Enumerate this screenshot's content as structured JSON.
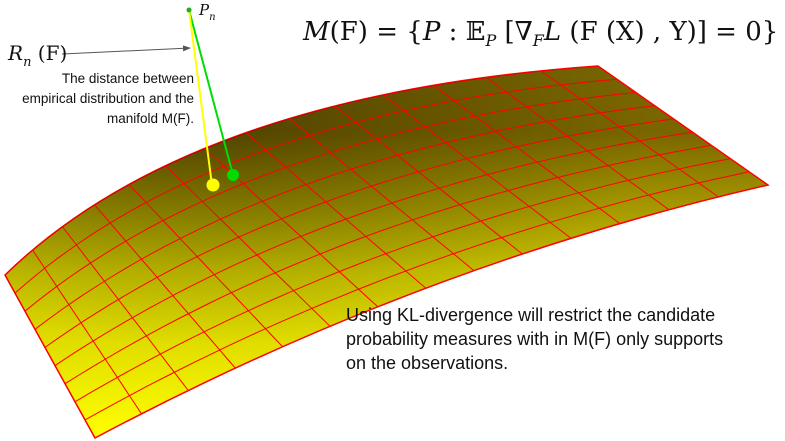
{
  "formula": {
    "lhs": "M",
    "arg": "(F)",
    "eq": " = {",
    "p": "P",
    "colon": " : ",
    "expect": "𝔼",
    "expect_sub": "P",
    "bracket_open": " [",
    "nabla": "∇",
    "nabla_sub": "F",
    "loss": "L",
    "loss_args": " (F (X) , Y)] = 0}"
  },
  "point": {
    "label": "P",
    "sub": "n"
  },
  "distance": {
    "label": "R",
    "sub": "n",
    "arg": " (F)",
    "description": "The distance between empirical distribution and the manifold M(F)."
  },
  "note": "Using KL-divergence will restrict the candidate probability measures with in M(F) only supports on the observations.",
  "colors": {
    "surface_top": "#ffff00",
    "surface_shadow": "#7a6600",
    "grid": "#ff0000",
    "empirical_point": "#22aa22",
    "projection_green": "#00dd00",
    "projection_yellow": "#ffff00",
    "arrow": "#555555"
  }
}
